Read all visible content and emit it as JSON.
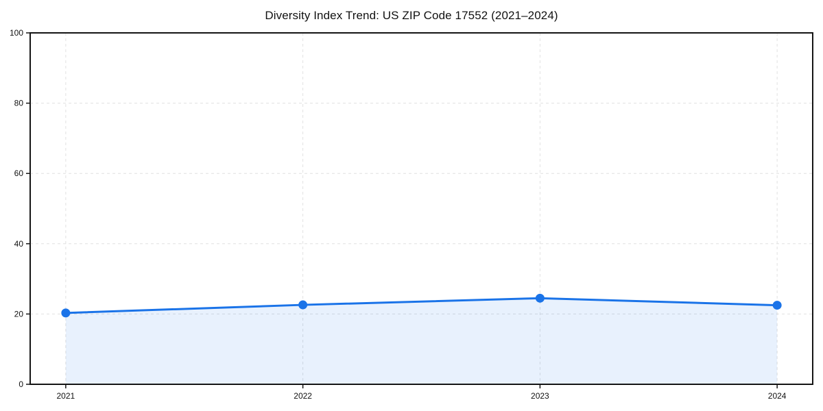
{
  "chart_data": {
    "type": "line",
    "title": "Diversity Index Trend: US ZIP Code 17552 (2021–2024)",
    "x": [
      2021,
      2022,
      2023,
      2024
    ],
    "values": [
      20.3,
      22.6,
      24.5,
      22.5
    ],
    "xlabel": "",
    "ylabel": "",
    "ylim": [
      0,
      100
    ],
    "yticks": [
      0,
      20,
      40,
      60,
      80,
      100
    ],
    "yticklabels": [
      "0",
      "20",
      "40",
      "60",
      "80",
      "100"
    ],
    "xticks": [
      2021,
      2022,
      2023,
      2024
    ],
    "xticklabels": [
      "2021",
      "2022",
      "2023",
      "2024"
    ],
    "x_margin_fraction": 0.05,
    "markers": true,
    "area_fill": true,
    "grid": {
      "show": true,
      "style": "dashed"
    },
    "legend_position": "none",
    "colors": {
      "line": "#1a73e8",
      "marker": "#1a73e8",
      "area": "#1a73e8",
      "area_opacity": 0.1,
      "grid": "#e0e0e0",
      "spine": "#141414",
      "tick": "#141414",
      "tick_label": "#111111",
      "background": "#ffffff"
    }
  }
}
